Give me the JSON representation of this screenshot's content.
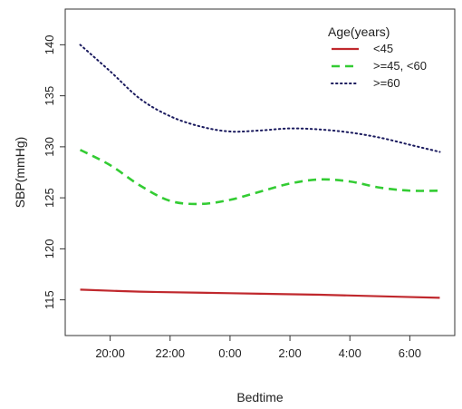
{
  "chart_data": {
    "type": "line",
    "title": "",
    "xlabel": "Bedtime",
    "ylabel": "SBP(mmHg)",
    "x_ticks": [
      "20:00",
      "22:00",
      "0:00",
      "2:00",
      "4:00",
      "6:00"
    ],
    "x_tick_hours": [
      20,
      22,
      24,
      26,
      28,
      30
    ],
    "xlim_hours": [
      18.5,
      31.5
    ],
    "y_ticks": [
      115,
      120,
      125,
      130,
      135,
      140
    ],
    "ylim": [
      111.5,
      143.5
    ],
    "grid": false,
    "legend": {
      "title": "Age(years)",
      "placement": "top-right",
      "entries": [
        "<45",
        ">=45, <60",
        ">=60"
      ]
    },
    "series": [
      {
        "name": "<45",
        "color": "#c0282d",
        "style": "solid",
        "x": [
          19,
          21,
          23,
          25,
          27,
          29,
          31
        ],
        "y": [
          116.0,
          115.8,
          115.7,
          115.6,
          115.5,
          115.35,
          115.2
        ]
      },
      {
        "name": ">=45, <60",
        "color": "#33cc33",
        "style": "dashed",
        "x": [
          19,
          20,
          21,
          22,
          23,
          24,
          25,
          26,
          27,
          28,
          29,
          30,
          31
        ],
        "y": [
          129.7,
          128.2,
          126.2,
          124.7,
          124.4,
          124.8,
          125.6,
          126.4,
          126.8,
          126.6,
          126.0,
          125.7,
          125.7
        ]
      },
      {
        "name": ">=60",
        "color": "#1a1a5e",
        "style": "dotted",
        "x": [
          19,
          20,
          21,
          22,
          23,
          24,
          25,
          26,
          27,
          28,
          29,
          30,
          31
        ],
        "y": [
          140.0,
          137.4,
          134.7,
          133.0,
          132.0,
          131.5,
          131.6,
          131.8,
          131.7,
          131.4,
          130.9,
          130.2,
          129.5
        ]
      }
    ]
  }
}
